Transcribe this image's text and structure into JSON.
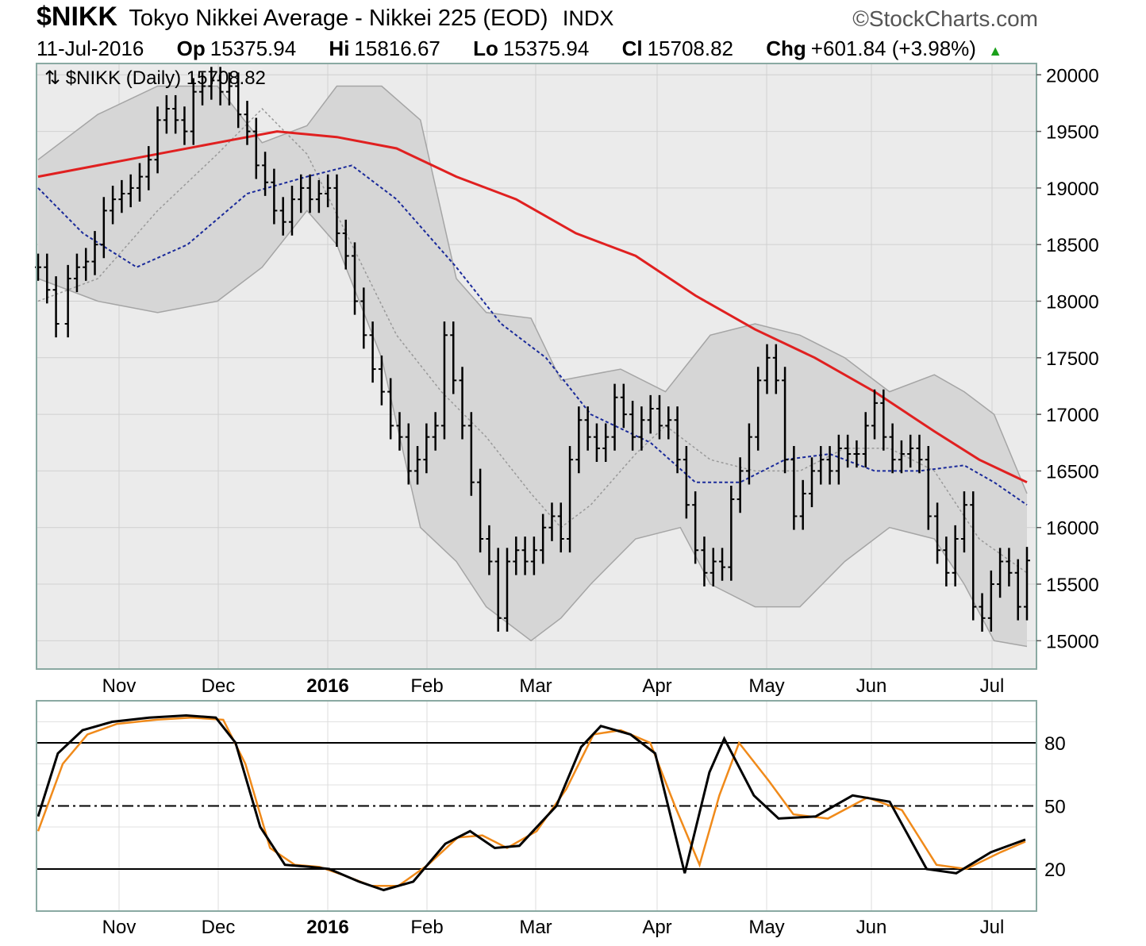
{
  "header": {
    "symbol": "$NIKK",
    "description": "Tokyo Nikkei Average - Nikkei 225 (EOD)",
    "exchange": "INDX",
    "brand": "©StockCharts.com",
    "date": "11-Jul-2016",
    "open_label": "Op",
    "open": "15375.94",
    "high_label": "Hi",
    "high": "15816.67",
    "low_label": "Lo",
    "low": "15375.94",
    "close_label": "Cl",
    "close": "15708.82",
    "change_label": "Chg",
    "change": "+601.84 (+3.98%)"
  },
  "colors": {
    "background": "#ffffff",
    "plot_bg": "#ebebeb",
    "grid": "#d0d0d0",
    "band_fill": "#d6d6d6",
    "band_line": "#a5a5a5",
    "ma200": "#e02020",
    "ma50": "#1a2a9a",
    "ma20": "#999999",
    "bars": "#000000",
    "stoch_k": "#000000",
    "stoch_d": "#f08a1a",
    "up_arrow": "#1aa01a"
  },
  "chart_data": [
    {
      "type": "ohlc",
      "legend": "$NIKK (Daily) 15708.82",
      "x_labels": [
        "Nov",
        "Dec",
        "2016",
        "Feb",
        "Mar",
        "Apr",
        "May",
        "Jun",
        "Jul"
      ],
      "bold_labels": [
        "2016"
      ],
      "ylim": [
        14750,
        20100
      ],
      "yticks": [
        15000,
        15500,
        16000,
        16500,
        17000,
        17500,
        18000,
        18500,
        19000,
        19500,
        20000
      ],
      "grid": true,
      "price_close": [
        [
          0,
          18300
        ],
        [
          3,
          18100
        ],
        [
          6,
          17800
        ],
        [
          10,
          18200
        ],
        [
          13,
          18300
        ],
        [
          16,
          18350
        ],
        [
          19,
          18500
        ],
        [
          22,
          18800
        ],
        [
          25,
          18900
        ],
        [
          28,
          18950
        ],
        [
          31,
          19000
        ],
        [
          34,
          19100
        ],
        [
          37,
          19250
        ],
        [
          40,
          19600
        ],
        [
          43,
          19700
        ],
        [
          46,
          19600
        ],
        [
          49,
          19500
        ],
        [
          52,
          19850
        ],
        [
          55,
          19900
        ],
        [
          58,
          19950
        ],
        [
          61,
          19850
        ],
        [
          64,
          19900
        ],
        [
          67,
          19650
        ],
        [
          70,
          19500
        ],
        [
          73,
          19200
        ],
        [
          76,
          19050
        ],
        [
          79,
          18800
        ],
        [
          82,
          18700
        ],
        [
          85,
          18900
        ],
        [
          88,
          19000
        ],
        [
          91,
          18900
        ],
        [
          94,
          18950
        ],
        [
          97,
          19000
        ],
        [
          100,
          18600
        ],
        [
          103,
          18400
        ],
        [
          106,
          18000
        ],
        [
          109,
          17700
        ],
        [
          112,
          17400
        ],
        [
          115,
          17200
        ],
        [
          118,
          16900
        ],
        [
          121,
          16800
        ],
        [
          124,
          16500
        ],
        [
          127,
          16600
        ],
        [
          130,
          16800
        ],
        [
          133,
          16900
        ],
        [
          136,
          17700
        ],
        [
          139,
          17300
        ],
        [
          142,
          16900
        ],
        [
          145,
          16400
        ],
        [
          148,
          15900
        ],
        [
          151,
          15700
        ],
        [
          154,
          15200
        ],
        [
          157,
          15700
        ],
        [
          160,
          15800
        ],
        [
          163,
          15700
        ],
        [
          166,
          15800
        ],
        [
          169,
          16000
        ],
        [
          172,
          16100
        ],
        [
          175,
          15900
        ],
        [
          178,
          16600
        ],
        [
          181,
          16950
        ],
        [
          184,
          16800
        ],
        [
          187,
          16700
        ],
        [
          190,
          16800
        ],
        [
          193,
          17150
        ],
        [
          196,
          17000
        ],
        [
          199,
          16800
        ],
        [
          202,
          16950
        ],
        [
          205,
          17050
        ],
        [
          208,
          16900
        ],
        [
          211,
          16950
        ],
        [
          214,
          16600
        ],
        [
          217,
          16200
        ],
        [
          220,
          15800
        ],
        [
          223,
          15600
        ],
        [
          226,
          15700
        ],
        [
          229,
          15650
        ],
        [
          232,
          16250
        ],
        [
          235,
          16500
        ],
        [
          238,
          16800
        ],
        [
          241,
          17300
        ],
        [
          244,
          17500
        ],
        [
          247,
          17300
        ],
        [
          250,
          16600
        ],
        [
          253,
          16100
        ],
        [
          256,
          16300
        ],
        [
          259,
          16500
        ],
        [
          262,
          16600
        ],
        [
          265,
          16500
        ],
        [
          268,
          16700
        ],
        [
          271,
          16650
        ],
        [
          274,
          16650
        ],
        [
          277,
          16900
        ],
        [
          280,
          17100
        ],
        [
          283,
          16800
        ],
        [
          286,
          16600
        ],
        [
          289,
          16650
        ],
        [
          292,
          16700
        ],
        [
          295,
          16600
        ],
        [
          298,
          16100
        ],
        [
          301,
          15800
        ],
        [
          304,
          15600
        ],
        [
          307,
          15900
        ],
        [
          310,
          16200
        ],
        [
          313,
          15300
        ],
        [
          316,
          15200
        ],
        [
          319,
          15500
        ],
        [
          322,
          15700
        ],
        [
          325,
          15600
        ],
        [
          328,
          15300
        ],
        [
          331,
          15709
        ]
      ],
      "bollinger_upper": [
        [
          0,
          19250
        ],
        [
          20,
          19650
        ],
        [
          40,
          19900
        ],
        [
          60,
          19900
        ],
        [
          75,
          19400
        ],
        [
          90,
          19550
        ],
        [
          100,
          19900
        ],
        [
          115,
          19900
        ],
        [
          128,
          19600
        ],
        [
          140,
          18200
        ],
        [
          150,
          17900
        ],
        [
          165,
          17850
        ],
        [
          175,
          17300
        ],
        [
          195,
          17400
        ],
        [
          210,
          17200
        ],
        [
          225,
          17700
        ],
        [
          240,
          17800
        ],
        [
          255,
          17700
        ],
        [
          270,
          17500
        ],
        [
          285,
          17200
        ],
        [
          300,
          17350
        ],
        [
          310,
          17200
        ],
        [
          320,
          17000
        ],
        [
          331,
          16300
        ]
      ],
      "bollinger_lower": [
        [
          0,
          18200
        ],
        [
          20,
          18000
        ],
        [
          40,
          17900
        ],
        [
          60,
          18000
        ],
        [
          75,
          18300
        ],
        [
          90,
          18800
        ],
        [
          100,
          18500
        ],
        [
          115,
          17500
        ],
        [
          128,
          16000
        ],
        [
          140,
          15700
        ],
        [
          150,
          15300
        ],
        [
          165,
          15000
        ],
        [
          175,
          15200
        ],
        [
          185,
          15500
        ],
        [
          200,
          15900
        ],
        [
          215,
          16000
        ],
        [
          225,
          15500
        ],
        [
          240,
          15300
        ],
        [
          255,
          15300
        ],
        [
          270,
          15700
        ],
        [
          285,
          16000
        ],
        [
          300,
          15900
        ],
        [
          310,
          15500
        ],
        [
          320,
          15000
        ],
        [
          331,
          14950
        ]
      ],
      "ma20": [
        [
          0,
          18000
        ],
        [
          20,
          18200
        ],
        [
          40,
          18800
        ],
        [
          60,
          19300
        ],
        [
          75,
          19700
        ],
        [
          90,
          19300
        ],
        [
          105,
          18500
        ],
        [
          120,
          17700
        ],
        [
          135,
          17200
        ],
        [
          150,
          16800
        ],
        [
          165,
          16300
        ],
        [
          175,
          16000
        ],
        [
          185,
          16200
        ],
        [
          200,
          16650
        ],
        [
          210,
          16900
        ],
        [
          225,
          16600
        ],
        [
          240,
          16500
        ],
        [
          255,
          16500
        ],
        [
          270,
          16700
        ],
        [
          285,
          16700
        ],
        [
          300,
          16500
        ],
        [
          315,
          15900
        ],
        [
          331,
          15600
        ]
      ],
      "ma50": [
        [
          0,
          19000
        ],
        [
          15,
          18600
        ],
        [
          33,
          18300
        ],
        [
          50,
          18500
        ],
        [
          70,
          18950
        ],
        [
          90,
          19100
        ],
        [
          105,
          19200
        ],
        [
          120,
          18900
        ],
        [
          140,
          18300
        ],
        [
          155,
          17800
        ],
        [
          170,
          17500
        ],
        [
          185,
          17000
        ],
        [
          205,
          16750
        ],
        [
          220,
          16400
        ],
        [
          235,
          16400
        ],
        [
          250,
          16600
        ],
        [
          265,
          16650
        ],
        [
          280,
          16500
        ],
        [
          295,
          16500
        ],
        [
          310,
          16550
        ],
        [
          320,
          16400
        ],
        [
          331,
          16200
        ]
      ],
      "ma200": [
        [
          0,
          19100
        ],
        [
          30,
          19250
        ],
        [
          60,
          19400
        ],
        [
          80,
          19500
        ],
        [
          100,
          19450
        ],
        [
          120,
          19350
        ],
        [
          140,
          19100
        ],
        [
          160,
          18900
        ],
        [
          180,
          18600
        ],
        [
          200,
          18400
        ],
        [
          220,
          18050
        ],
        [
          240,
          17750
        ],
        [
          260,
          17500
        ],
        [
          280,
          17200
        ],
        [
          300,
          16850
        ],
        [
          315,
          16600
        ],
        [
          331,
          16400
        ]
      ]
    },
    {
      "type": "line",
      "x_labels": [
        "Nov",
        "Dec",
        "2016",
        "Feb",
        "Mar",
        "Apr",
        "May",
        "Jun",
        "Jul"
      ],
      "ylim": [
        0,
        100
      ],
      "yticks": [
        20,
        50,
        80
      ],
      "reference_lines": [
        80,
        50,
        20
      ],
      "series": [
        {
          "values": [
            [
              0,
              45
            ],
            [
              8,
              75
            ],
            [
              18,
              86
            ],
            [
              30,
              90
            ],
            [
              45,
              92
            ],
            [
              60,
              93
            ],
            [
              72,
              92
            ],
            [
              80,
              80
            ],
            [
              90,
              40
            ],
            [
              100,
              22
            ],
            [
              110,
              21
            ],
            [
              118,
              20
            ],
            [
              130,
              14
            ],
            [
              140,
              10
            ],
            [
              152,
              14
            ],
            [
              165,
              32
            ],
            [
              175,
              38
            ],
            [
              185,
              30
            ],
            [
              195,
              31
            ],
            [
              210,
              50
            ],
            [
              220,
              78
            ],
            [
              228,
              88
            ],
            [
              240,
              84
            ],
            [
              250,
              75
            ],
            [
              262,
              18
            ],
            [
              272,
              66
            ],
            [
              278,
              82
            ],
            [
              290,
              55
            ],
            [
              300,
              44
            ],
            [
              315,
              45
            ],
            [
              330,
              55
            ],
            [
              345,
              52
            ],
            [
              360,
              20
            ],
            [
              372,
              18
            ],
            [
              386,
              28
            ],
            [
              400,
              34
            ]
          ]
        },
        {
          "values": [
            [
              0,
              38
            ],
            [
              10,
              70
            ],
            [
              20,
              84
            ],
            [
              32,
              89
            ],
            [
              48,
              91
            ],
            [
              62,
              92
            ],
            [
              75,
              91
            ],
            [
              84,
              70
            ],
            [
              94,
              30
            ],
            [
              104,
              22
            ],
            [
              114,
              21
            ],
            [
              124,
              17
            ],
            [
              135,
              12
            ],
            [
              146,
              12
            ],
            [
              158,
              22
            ],
            [
              170,
              35
            ],
            [
              180,
              36
            ],
            [
              190,
              30
            ],
            [
              202,
              38
            ],
            [
              214,
              58
            ],
            [
              225,
              84
            ],
            [
              236,
              86
            ],
            [
              248,
              80
            ],
            [
              258,
              50
            ],
            [
              268,
              22
            ],
            [
              276,
              55
            ],
            [
              284,
              80
            ],
            [
              296,
              62
            ],
            [
              306,
              46
            ],
            [
              320,
              44
            ],
            [
              336,
              54
            ],
            [
              350,
              48
            ],
            [
              364,
              22
            ],
            [
              376,
              20
            ],
            [
              390,
              28
            ],
            [
              400,
              33
            ]
          ]
        }
      ]
    }
  ]
}
